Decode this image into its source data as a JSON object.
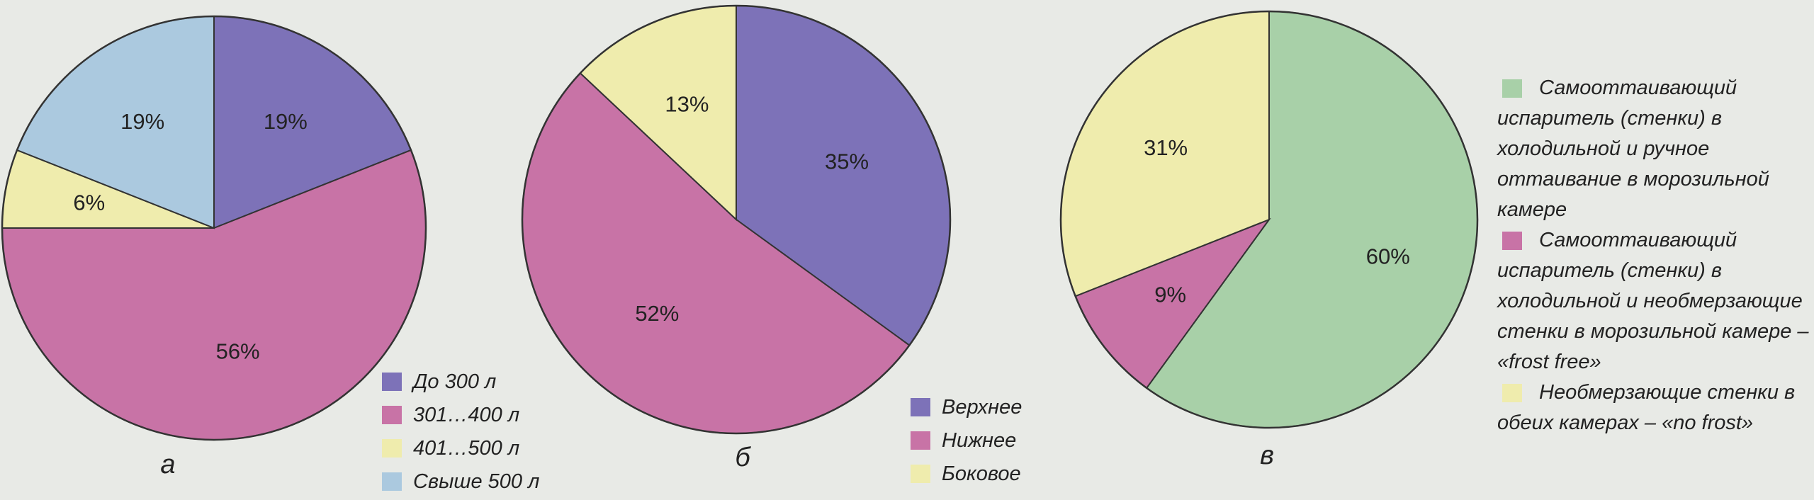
{
  "chart_data": [
    {
      "type": "pie",
      "title": "а",
      "categories": [
        "До 300 л",
        "301…400 л",
        "401…500 л",
        "Свыше 500 л"
      ],
      "values": [
        19,
        56,
        6,
        19
      ],
      "value_labels": [
        "19%",
        "56%",
        "6%",
        "19%"
      ],
      "colors": [
        "#7d72b8",
        "#c873a6",
        "#efecad",
        "#abc9df"
      ]
    },
    {
      "type": "pie",
      "title": "б",
      "categories": [
        "Верхнее",
        "Нижнее",
        "Боковое"
      ],
      "values": [
        35,
        52,
        13
      ],
      "value_labels": [
        "35%",
        "52%",
        "13%"
      ],
      "colors": [
        "#7d72b8",
        "#c873a6",
        "#efecad"
      ]
    },
    {
      "type": "pie",
      "title": "в",
      "categories": [
        "Самооттаивающий испаритель (стенки) в холодильной и ручное оттаивание в морозильной камере",
        "Самооттаивающий испаритель (стенки) в холодильной и необмерзающие стенки в морозильной камере – «frost free»",
        "Необмерзающие стенки в обеих камерах – «no frost»"
      ],
      "values": [
        60,
        9,
        31
      ],
      "value_labels": [
        "60%",
        "9%",
        "31%"
      ],
      "colors": [
        "#a8d0a8",
        "#c873a6",
        "#efecad"
      ]
    }
  ]
}
